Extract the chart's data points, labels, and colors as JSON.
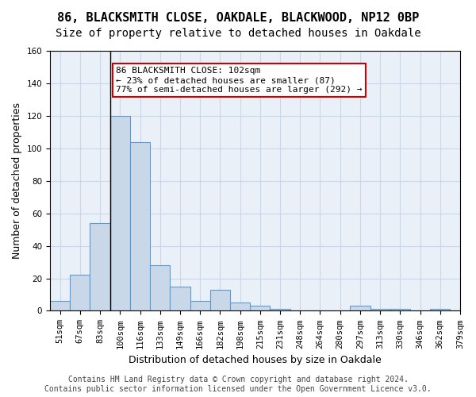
{
  "title1": "86, BLACKSMITH CLOSE, OAKDALE, BLACKWOOD, NP12 0BP",
  "title2": "Size of property relative to detached houses in Oakdale",
  "xlabel": "Distribution of detached houses by size in Oakdale",
  "ylabel": "Number of detached properties",
  "bar_values": [
    6,
    22,
    54,
    120,
    104,
    28,
    15,
    6,
    13,
    5,
    3,
    1,
    0,
    0,
    0,
    3,
    1,
    1,
    0,
    1
  ],
  "bin_edges": [
    51,
    67,
    83,
    100,
    116,
    133,
    149,
    166,
    182,
    198,
    215,
    231,
    248,
    264,
    280,
    297,
    313,
    330,
    346,
    362,
    379
  ],
  "tick_labels": [
    "51sqm",
    "67sqm",
    "83sqm",
    "100sqm",
    "116sqm",
    "133sqm",
    "149sqm",
    "166sqm",
    "182sqm",
    "198sqm",
    "215sqm",
    "231sqm",
    "248sqm",
    "264sqm",
    "280sqm",
    "297sqm",
    "313sqm",
    "330sqm",
    "346sqm",
    "362sqm",
    "379sqm"
  ],
  "bar_color": "#c8d8e8",
  "bar_edge_color": "#5b9bd5",
  "vline_x_index": 3,
  "vline_color": "#000000",
  "annotation_text": "86 BLACKSMITH CLOSE: 102sqm\n← 23% of detached houses are smaller (87)\n77% of semi-detached houses are larger (292) →",
  "annotation_box_color": "#ffffff",
  "annotation_box_edge": "#cc0000",
  "ylim": [
    0,
    160
  ],
  "yticks": [
    0,
    20,
    40,
    60,
    80,
    100,
    120,
    140,
    160
  ],
  "grid_color": "#c8d8e8",
  "bg_color": "#eaf0f8",
  "footer": "Contains HM Land Registry data © Crown copyright and database right 2024.\nContains public sector information licensed under the Open Government Licence v3.0.",
  "title1_fontsize": 11,
  "title2_fontsize": 10,
  "xlabel_fontsize": 9,
  "ylabel_fontsize": 9,
  "tick_fontsize": 7.5,
  "annotation_fontsize": 8,
  "footer_fontsize": 7
}
